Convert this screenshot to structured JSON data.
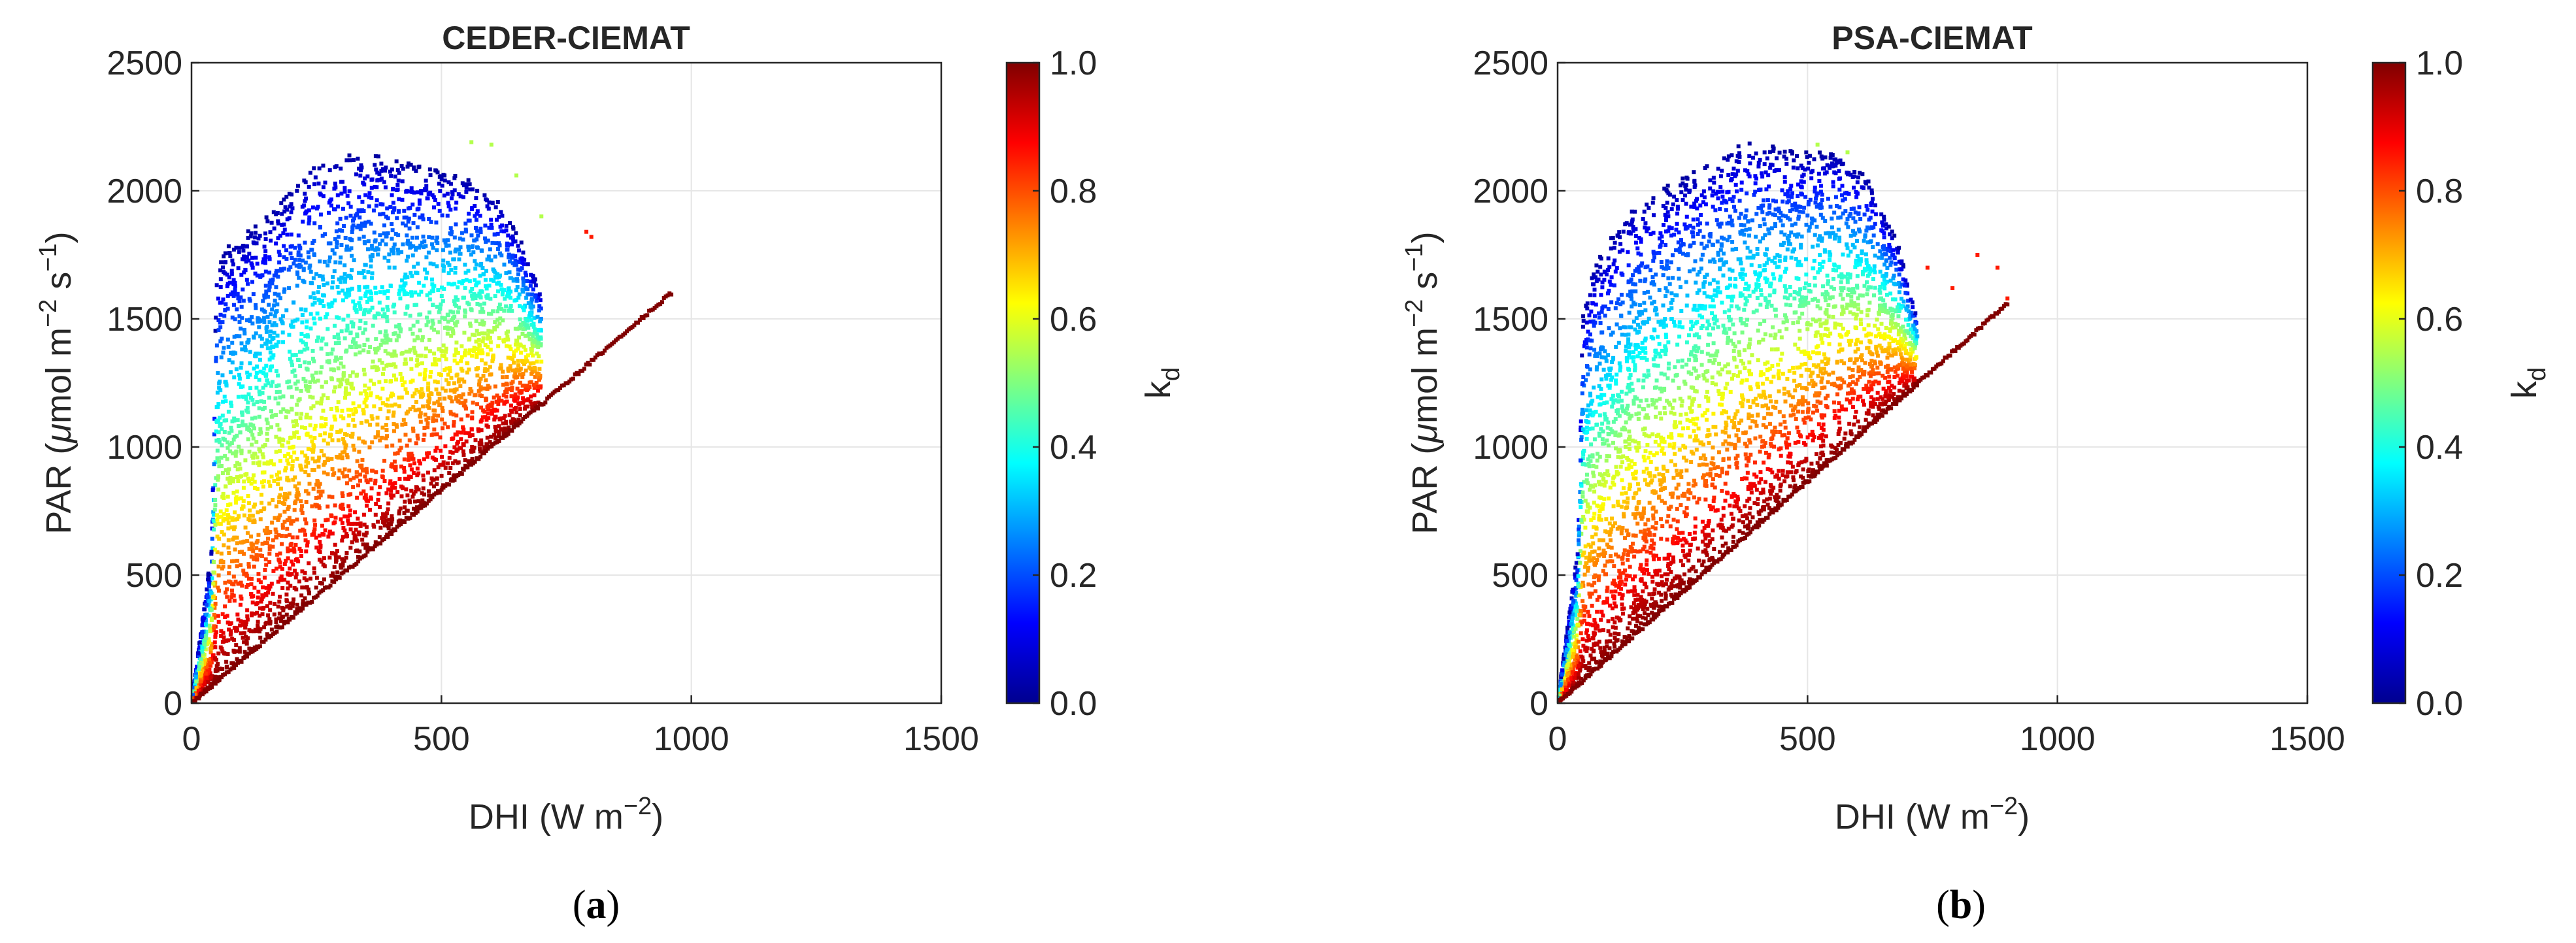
{
  "chart_data": [
    {
      "type": "scatter",
      "title": "CEDER-CIEMAT",
      "xlabel": {
        "main": "DHI (W m",
        "sup": "−2",
        "tail": ")"
      },
      "ylabel": {
        "main": "PAR (",
        "mu": "μ",
        "mid": "mol m",
        "sup1": "−2",
        "sp": " s",
        "sup2": "−1",
        "tail": ")"
      },
      "xlim": [
        0,
        1500
      ],
      "ylim": [
        0,
        2500
      ],
      "xticks": [
        0,
        500,
        1000,
        1500
      ],
      "yticks": [
        0,
        500,
        1000,
        1500,
        2000,
        2500
      ],
      "grid": true,
      "colorbar": {
        "label_main": "k",
        "label_sub": "d",
        "range": [
          0,
          1
        ],
        "ticks": [
          "0.0",
          "0.2",
          "0.4",
          "0.6",
          "0.8",
          "1.0"
        ],
        "colormap": "jet"
      },
      "caption": {
        "open": "(",
        "letter": "a",
        "close": ")"
      },
      "envelope": {
        "description_values": "kd-colored scatter of PAR vs DHI; upper PAR envelope by DHI",
        "upper": [
          [
            0,
            0
          ],
          [
            40,
            600
          ],
          [
            50,
            1700
          ],
          [
            70,
            1780
          ],
          [
            150,
            1900
          ],
          [
            250,
            2120
          ],
          [
            350,
            2150
          ],
          [
            450,
            2100
          ],
          [
            550,
            2050
          ],
          [
            620,
            1950
          ],
          [
            660,
            1800
          ],
          [
            700,
            1600
          ]
        ],
        "clear_sky_line": [
          [
            0,
            0
          ],
          [
            960,
            1600
          ]
        ],
        "outliers": [
          [
            560,
            2190
          ],
          [
            600,
            2180
          ],
          [
            650,
            2060
          ],
          [
            700,
            1900
          ],
          [
            790,
            1840
          ],
          [
            800,
            1820
          ]
        ]
      }
    },
    {
      "type": "scatter",
      "title": "PSA-CIEMAT",
      "xlabel": {
        "main": "DHI (W m",
        "sup": "−2",
        "tail": ")"
      },
      "ylabel": {
        "main": "PAR (",
        "mu": "μ",
        "mid": "mol m",
        "sup1": "−2",
        "sp": " s",
        "sup2": "−1",
        "tail": ")"
      },
      "xlim": [
        0,
        1500
      ],
      "ylim": [
        0,
        2500
      ],
      "xticks": [
        0,
        500,
        1000,
        1500
      ],
      "yticks": [
        0,
        500,
        1000,
        1500,
        2000,
        2500
      ],
      "grid": true,
      "colorbar": {
        "label_main": "k",
        "label_sub": "d",
        "range": [
          0,
          1
        ],
        "ticks": [
          "0.0",
          "0.2",
          "0.4",
          "0.6",
          "0.8",
          "1.0"
        ],
        "colormap": "jet"
      },
      "caption": {
        "open": "(",
        "letter": "b",
        "close": ")"
      },
      "envelope": {
        "description_values": "kd-colored scatter of PAR vs DHI; upper PAR envelope by DHI",
        "upper": [
          [
            0,
            0
          ],
          [
            40,
            600
          ],
          [
            50,
            1500
          ],
          [
            70,
            1700
          ],
          [
            150,
            1950
          ],
          [
            250,
            2050
          ],
          [
            380,
            2200
          ],
          [
            480,
            2150
          ],
          [
            560,
            2150
          ],
          [
            620,
            2050
          ],
          [
            680,
            1800
          ],
          [
            720,
            1500
          ]
        ],
        "clear_sky_line": [
          [
            0,
            0
          ],
          [
            900,
            1560
          ]
        ],
        "outliers": [
          [
            520,
            2180
          ],
          [
            580,
            2150
          ],
          [
            740,
            1700
          ],
          [
            790,
            1620
          ],
          [
            840,
            1750
          ],
          [
            880,
            1700
          ],
          [
            900,
            1580
          ]
        ]
      }
    }
  ]
}
